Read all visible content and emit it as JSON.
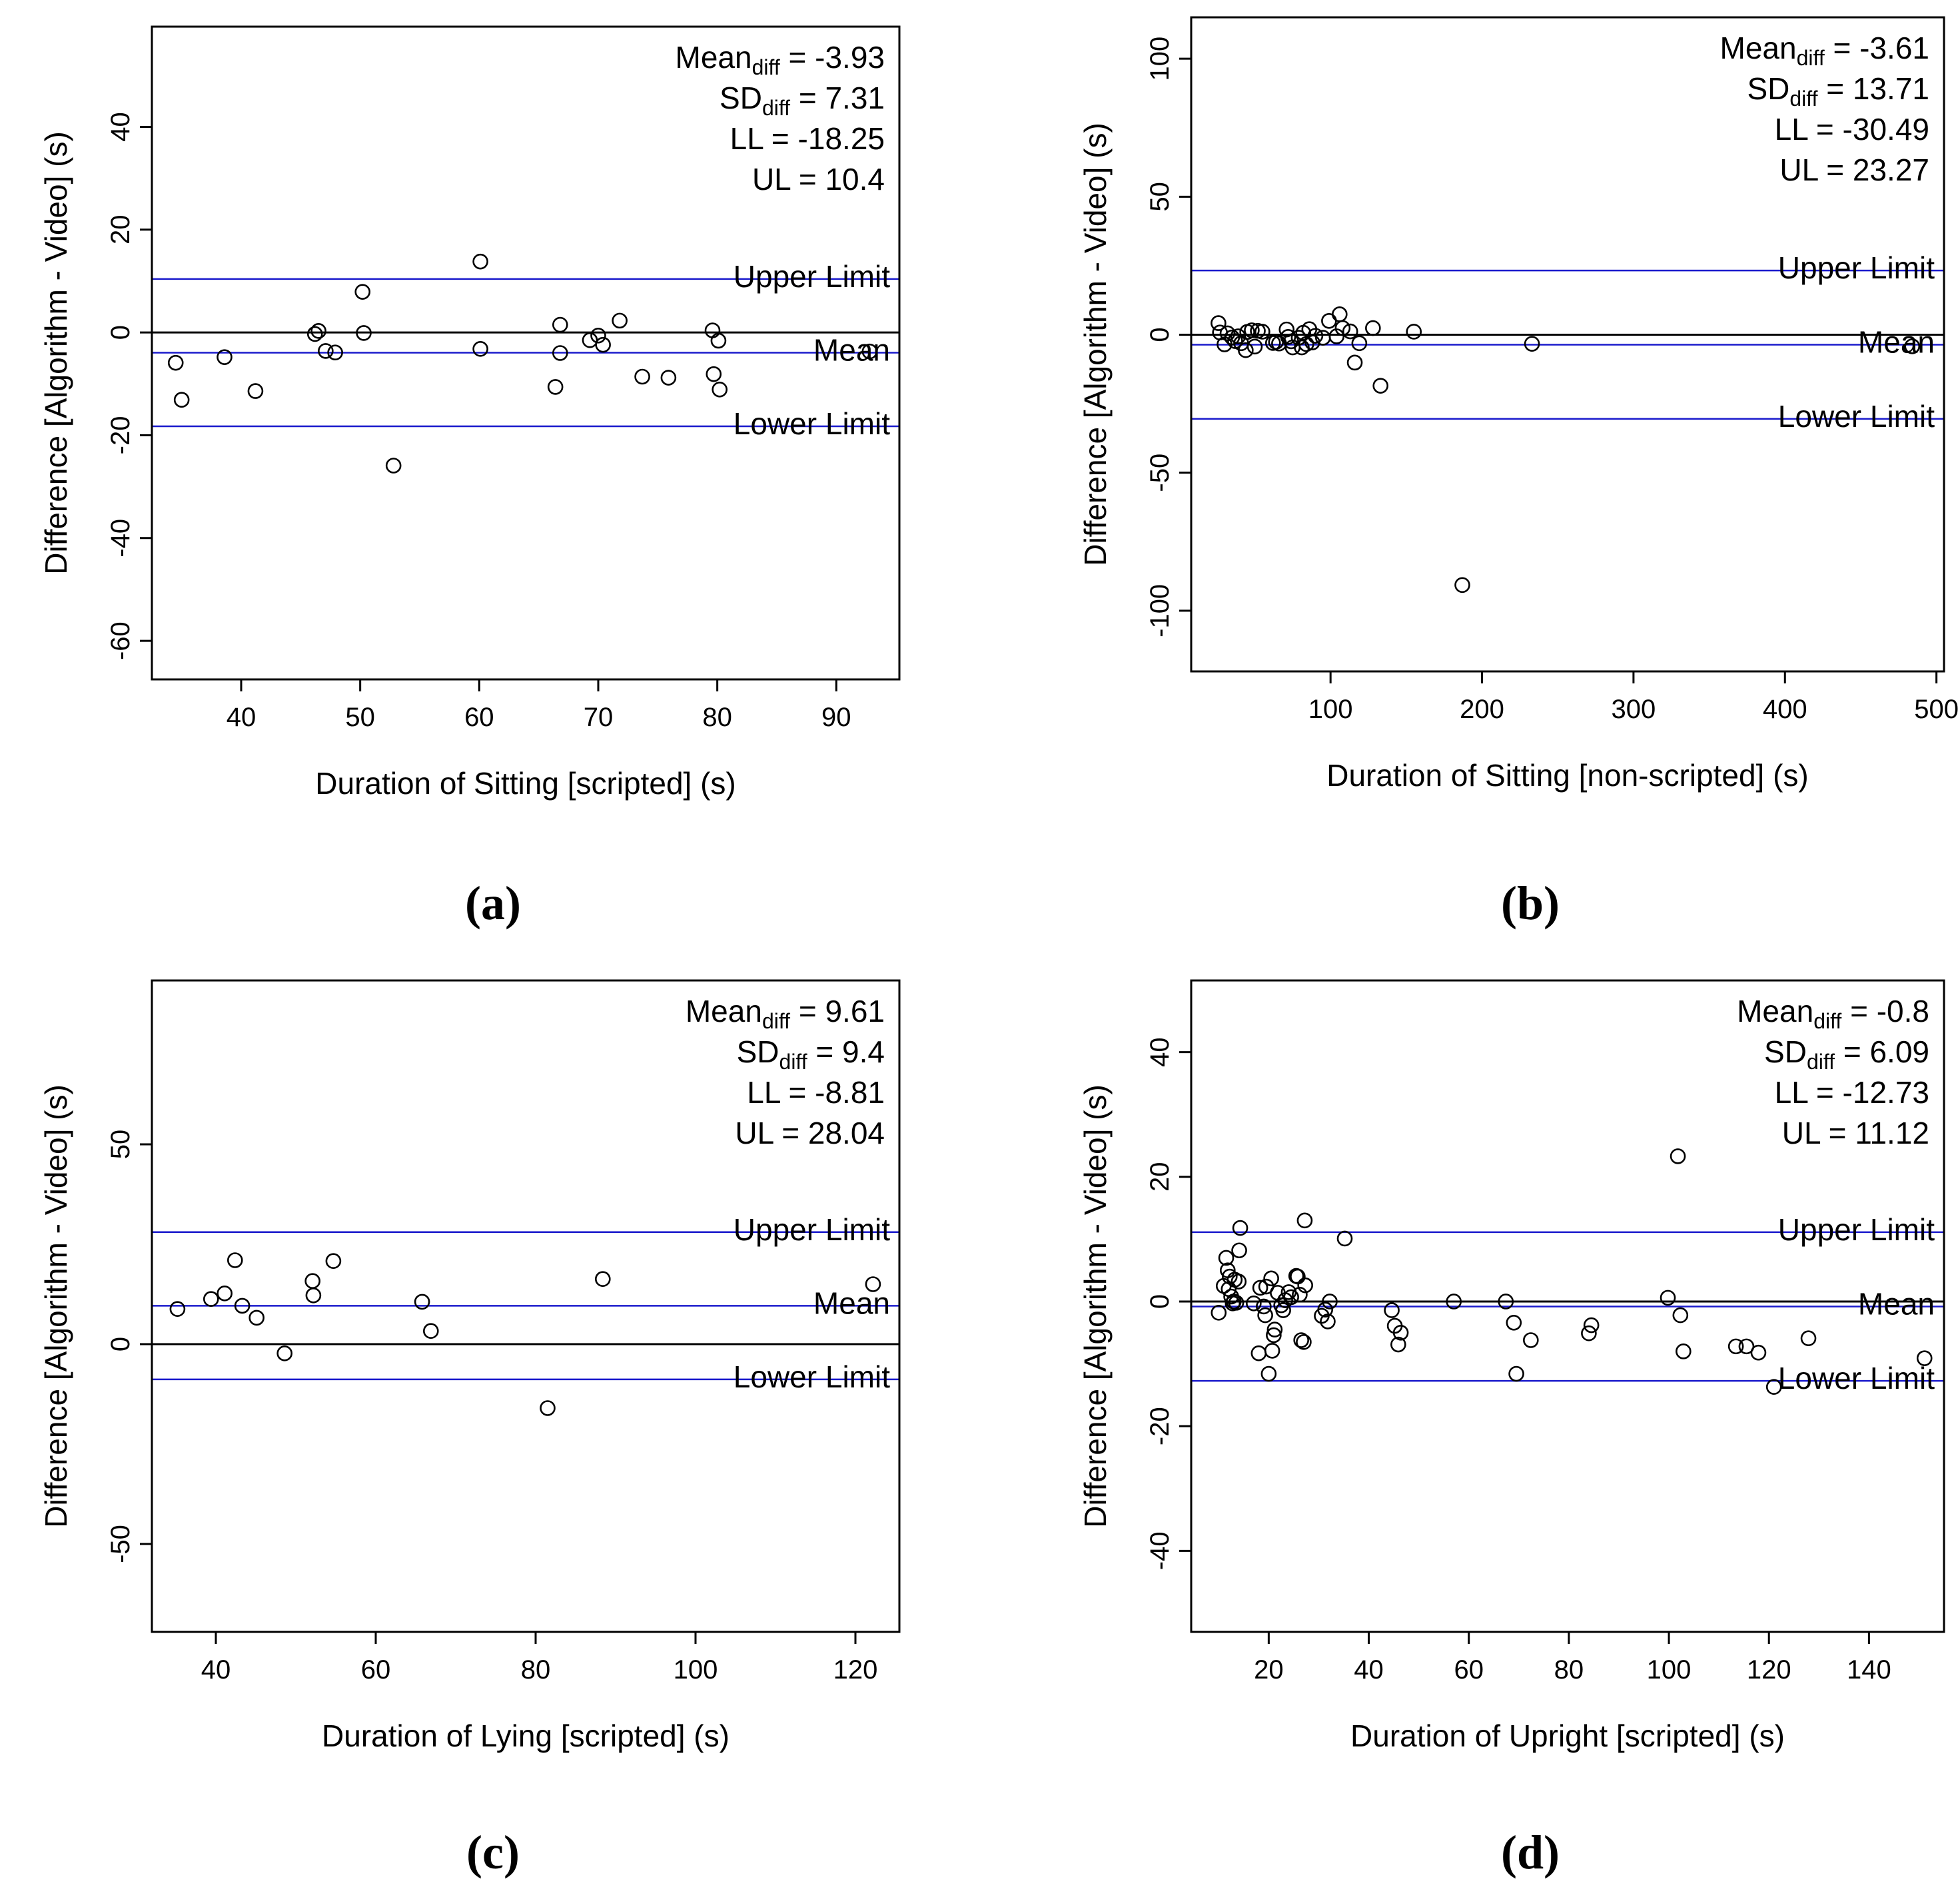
{
  "figure": {
    "panels": [
      {
        "label": "(a)",
        "letter": "a"
      },
      {
        "label": "(b)",
        "letter": "b"
      },
      {
        "label": "(c)",
        "letter": "c"
      },
      {
        "label": "(d)",
        "letter": "d"
      }
    ]
  },
  "chart_data": [
    {
      "type": "scatter",
      "panel": "(a)",
      "title": "",
      "xlabel": "Duration of Sitting [scripted] (s)",
      "ylabel": "Difference [Algorithm - Video] (s)",
      "xlim": [
        32.5,
        95.3
      ],
      "ylim": [
        -67.5,
        59.5
      ],
      "xticks": [
        40,
        50,
        60,
        70,
        80,
        90
      ],
      "yticks": [
        -60,
        -40,
        -20,
        0,
        20,
        40
      ],
      "grid": false,
      "stats": {
        "mean_prefix": "Mean",
        "mean_sub": "diff",
        "mean_value": "= -3.93",
        "sd_prefix": "SD",
        "sd_sub": "diff",
        "sd_value": "= 7.31",
        "ll": "LL = -18.25",
        "ul": "UL = 10.4"
      },
      "reference_lines": [
        {
          "name": "Upper Limit",
          "label": "Upper Limit",
          "y": 10.4,
          "color": "#1a1acc"
        },
        {
          "name": "Mean",
          "label": "Mean",
          "y": -3.93,
          "color": "#1a1acc"
        },
        {
          "name": "Lower Limit",
          "label": "Lower Limit",
          "y": -18.25,
          "color": "#1a1acc"
        },
        {
          "name": "Zero",
          "label": "",
          "y": 0,
          "color": "#000000"
        }
      ],
      "points": [
        [
          34.5,
          -5.9
        ],
        [
          35.0,
          -13.1
        ],
        [
          38.6,
          -4.8
        ],
        [
          41.2,
          -11.4
        ],
        [
          46.2,
          -0.3
        ],
        [
          46.5,
          0.3
        ],
        [
          47.1,
          -3.6
        ],
        [
          47.9,
          -3.9
        ],
        [
          50.2,
          7.9
        ],
        [
          50.3,
          -0.1
        ],
        [
          52.8,
          -25.9
        ],
        [
          60.1,
          13.8
        ],
        [
          60.1,
          -3.2
        ],
        [
          66.4,
          -10.6
        ],
        [
          66.8,
          1.5
        ],
        [
          66.8,
          -4.0
        ],
        [
          69.3,
          -1.5
        ],
        [
          70.0,
          -0.6
        ],
        [
          70.4,
          -2.4
        ],
        [
          71.8,
          2.3
        ],
        [
          73.7,
          -8.6
        ],
        [
          75.9,
          -8.8
        ],
        [
          79.6,
          0.4
        ],
        [
          79.7,
          -8.1
        ],
        [
          80.1,
          -1.6
        ],
        [
          80.2,
          -11.1
        ],
        [
          92.8,
          -3.7
        ]
      ]
    },
    {
      "type": "scatter",
      "panel": "(b)",
      "title": "",
      "xlabel": "Duration of Sitting [non-scripted] (s)",
      "ylabel": "Difference [Algorithm - Video] (s)",
      "xlim": [
        8,
        505
      ],
      "ylim": [
        -122,
        115
      ],
      "xticks": [
        100,
        200,
        300,
        400,
        500
      ],
      "yticks": [
        -100,
        -50,
        0,
        50,
        100
      ],
      "grid": false,
      "stats": {
        "mean_prefix": "Mean",
        "mean_sub": "diff",
        "mean_value": "= -3.61",
        "sd_prefix": "SD",
        "sd_sub": "diff",
        "sd_value": "= 13.71",
        "ll": "LL = -30.49",
        "ul": "UL = 23.27"
      },
      "reference_lines": [
        {
          "name": "Upper Limit",
          "label": "Upper Limit",
          "y": 23.27,
          "color": "#1a1acc"
        },
        {
          "name": "Mean",
          "label": "Mean",
          "y": -3.61,
          "color": "#1a1acc"
        },
        {
          "name": "Lower Limit",
          "label": "Lower Limit",
          "y": -30.49,
          "color": "#1a1acc"
        },
        {
          "name": "Zero",
          "label": "",
          "y": 0,
          "color": "#000000"
        }
      ],
      "points": [
        [
          26,
          4.2
        ],
        [
          27,
          0.8
        ],
        [
          30,
          -3.5
        ],
        [
          32,
          0.5
        ],
        [
          35,
          -1.0
        ],
        [
          37,
          -2.3
        ],
        [
          39,
          -0.6
        ],
        [
          41,
          -3.1
        ],
        [
          44,
          -5.6
        ],
        [
          45,
          1.0
        ],
        [
          48,
          1.6
        ],
        [
          50,
          -4.3
        ],
        [
          52,
          1.4
        ],
        [
          55,
          1.1
        ],
        [
          62,
          -3.0
        ],
        [
          64,
          -2.6
        ],
        [
          66,
          -3.2
        ],
        [
          71,
          1.9
        ],
        [
          72,
          -0.8
        ],
        [
          74,
          -2.4
        ],
        [
          75,
          -4.6
        ],
        [
          79,
          -1.1
        ],
        [
          81,
          -4.6
        ],
        [
          82,
          0.7
        ],
        [
          84,
          -3.4
        ],
        [
          86,
          2.0
        ],
        [
          88,
          -2.8
        ],
        [
          90,
          -0.4
        ],
        [
          95,
          -1.1
        ],
        [
          99,
          5.0
        ],
        [
          104,
          -0.6
        ],
        [
          106,
          7.4
        ],
        [
          108,
          2.4
        ],
        [
          113,
          1.2
        ],
        [
          116,
          -10.1
        ],
        [
          119,
          -3.1
        ],
        [
          128,
          2.4
        ],
        [
          133,
          -18.5
        ],
        [
          155,
          1.1
        ],
        [
          187,
          -90.7
        ],
        [
          233,
          -3.3
        ],
        [
          484,
          -4.2
        ]
      ]
    },
    {
      "type": "scatter",
      "panel": "(c)",
      "title": "",
      "xlabel": "Duration of Lying [scripted] (s)",
      "ylabel": "Difference [Algorithm - Video] (s)",
      "xlim": [
        32,
        125.5
      ],
      "ylim": [
        -72,
        91
      ],
      "xticks": [
        40,
        60,
        80,
        100,
        120
      ],
      "yticks": [
        -50,
        0,
        50
      ],
      "grid": false,
      "stats": {
        "mean_prefix": "Mean",
        "mean_sub": "diff",
        "mean_value": "= 9.61",
        "sd_prefix": "SD",
        "sd_sub": "diff",
        "sd_value": "= 9.4",
        "ll": "LL = -8.81",
        "ul": "UL = 28.04"
      },
      "reference_lines": [
        {
          "name": "Upper Limit",
          "label": "Upper Limit",
          "y": 28.04,
          "color": "#1a1acc"
        },
        {
          "name": "Mean",
          "label": "Mean",
          "y": 9.61,
          "color": "#1a1acc"
        },
        {
          "name": "Lower Limit",
          "label": "Lower Limit",
          "y": -8.81,
          "color": "#1a1acc"
        },
        {
          "name": "Zero",
          "label": "",
          "y": 0,
          "color": "#000000"
        }
      ],
      "points": [
        [
          35.2,
          8.8
        ],
        [
          39.4,
          11.3
        ],
        [
          41.1,
          12.7
        ],
        [
          42.4,
          21.0
        ],
        [
          43.3,
          9.6
        ],
        [
          45.1,
          6.6
        ],
        [
          48.6,
          -2.3
        ],
        [
          52.1,
          15.8
        ],
        [
          52.2,
          12.2
        ],
        [
          54.7,
          20.8
        ],
        [
          65.8,
          10.6
        ],
        [
          66.9,
          3.3
        ],
        [
          81.5,
          -16.0
        ],
        [
          88.4,
          16.3
        ],
        [
          122.2,
          15.0
        ]
      ]
    },
    {
      "type": "scatter",
      "panel": "(d)",
      "title": "",
      "xlabel": "Duration of Upright [scripted] (s)",
      "ylabel": "Difference [Algorithm - Video] (s)",
      "xlim": [
        4.5,
        155
      ],
      "ylim": [
        -53,
        51.5
      ],
      "xticks": [
        20,
        40,
        60,
        80,
        100,
        120,
        140
      ],
      "yticks": [
        -40,
        -20,
        0,
        20,
        40
      ],
      "grid": false,
      "stats": {
        "mean_prefix": "Mean",
        "mean_sub": "diff",
        "mean_value": "= -0.8",
        "sd_prefix": "SD",
        "sd_sub": "diff",
        "sd_value": "= 6.09",
        "ll": "LL = -12.73",
        "ul": "UL = 11.12"
      },
      "reference_lines": [
        {
          "name": "Upper Limit",
          "label": "Upper Limit",
          "y": 11.12,
          "color": "#1a1acc"
        },
        {
          "name": "Mean",
          "label": "Mean",
          "y": -0.8,
          "color": "#1a1acc"
        },
        {
          "name": "Lower Limit",
          "label": "Lower Limit",
          "y": -12.73,
          "color": "#1a1acc"
        },
        {
          "name": "Zero",
          "label": "",
          "y": 0,
          "color": "#000000"
        }
      ],
      "points": [
        [
          10.0,
          -1.8
        ],
        [
          11.0,
          2.5
        ],
        [
          11.5,
          7.0
        ],
        [
          11.8,
          5.0
        ],
        [
          12.0,
          2.0
        ],
        [
          12.2,
          4.0
        ],
        [
          12.5,
          0.8
        ],
        [
          12.8,
          -0.3
        ],
        [
          13.0,
          0.0
        ],
        [
          13.2,
          3.5
        ],
        [
          13.5,
          -0.2
        ],
        [
          14.0,
          3.2
        ],
        [
          14.1,
          8.2
        ],
        [
          14.3,
          11.8
        ],
        [
          17.0,
          -0.3
        ],
        [
          18.0,
          -8.3
        ],
        [
          18.3,
          2.2
        ],
        [
          19.0,
          -0.8
        ],
        [
          19.3,
          -2.2
        ],
        [
          19.5,
          2.4
        ],
        [
          20.0,
          -11.6
        ],
        [
          20.5,
          3.7
        ],
        [
          20.7,
          -7.9
        ],
        [
          21.0,
          -5.4
        ],
        [
          21.2,
          -4.5
        ],
        [
          21.8,
          1.4
        ],
        [
          22.5,
          -0.6
        ],
        [
          22.9,
          -1.4
        ],
        [
          23.3,
          0.2
        ],
        [
          24.0,
          1.5
        ],
        [
          24.5,
          0.7
        ],
        [
          25.5,
          4.1
        ],
        [
          25.8,
          4.0
        ],
        [
          26.2,
          1.1
        ],
        [
          26.5,
          -6.2
        ],
        [
          27.0,
          -6.5
        ],
        [
          27.2,
          13.0
        ],
        [
          27.3,
          2.6
        ],
        [
          30.6,
          -2.3
        ],
        [
          31.3,
          -1.3
        ],
        [
          31.8,
          -3.2
        ],
        [
          32.2,
          0.0
        ],
        [
          35.2,
          10.1
        ],
        [
          44.6,
          -1.4
        ],
        [
          45.2,
          -3.9
        ],
        [
          45.9,
          -6.9
        ],
        [
          46.4,
          -5.0
        ],
        [
          57.0,
          0.0
        ],
        [
          67.4,
          0.0
        ],
        [
          69.0,
          -3.4
        ],
        [
          69.5,
          -11.6
        ],
        [
          72.4,
          -6.2
        ],
        [
          84.0,
          -5.1
        ],
        [
          84.5,
          -3.8
        ],
        [
          99.8,
          0.6
        ],
        [
          101.8,
          23.3
        ],
        [
          102.3,
          -2.2
        ],
        [
          102.9,
          -8.0
        ],
        [
          113.4,
          -7.2
        ],
        [
          115.5,
          -7.2
        ],
        [
          117.9,
          -8.2
        ],
        [
          121.0,
          -13.7
        ],
        [
          127.9,
          -5.9
        ],
        [
          151.1,
          -9.1
        ]
      ]
    }
  ]
}
